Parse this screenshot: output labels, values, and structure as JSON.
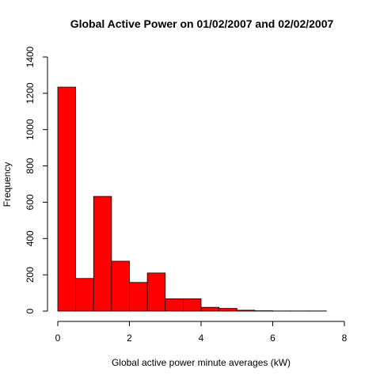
{
  "chart_data": {
    "type": "bar",
    "title": "Global Active Power on 01/02/2007 and 02/02/2007",
    "xlabel": "Global active power minute averages (kW)",
    "ylabel": "Frequency",
    "bar_color": "#ff0000",
    "xlim": [
      0,
      8
    ],
    "ylim": [
      0,
      1400
    ],
    "xticks": [
      0,
      2,
      4,
      6,
      8
    ],
    "yticks": [
      0,
      200,
      400,
      600,
      800,
      1000,
      1200,
      1400
    ],
    "bin_edges": [
      0,
      0.5,
      1,
      1.5,
      2,
      2.5,
      3,
      3.5,
      4,
      4.5,
      5,
      5.5,
      6,
      6.5,
      7,
      7.5
    ],
    "values": [
      1234,
      180,
      632,
      275,
      158,
      210,
      68,
      68,
      21,
      15,
      5,
      2,
      1,
      1,
      1
    ]
  }
}
